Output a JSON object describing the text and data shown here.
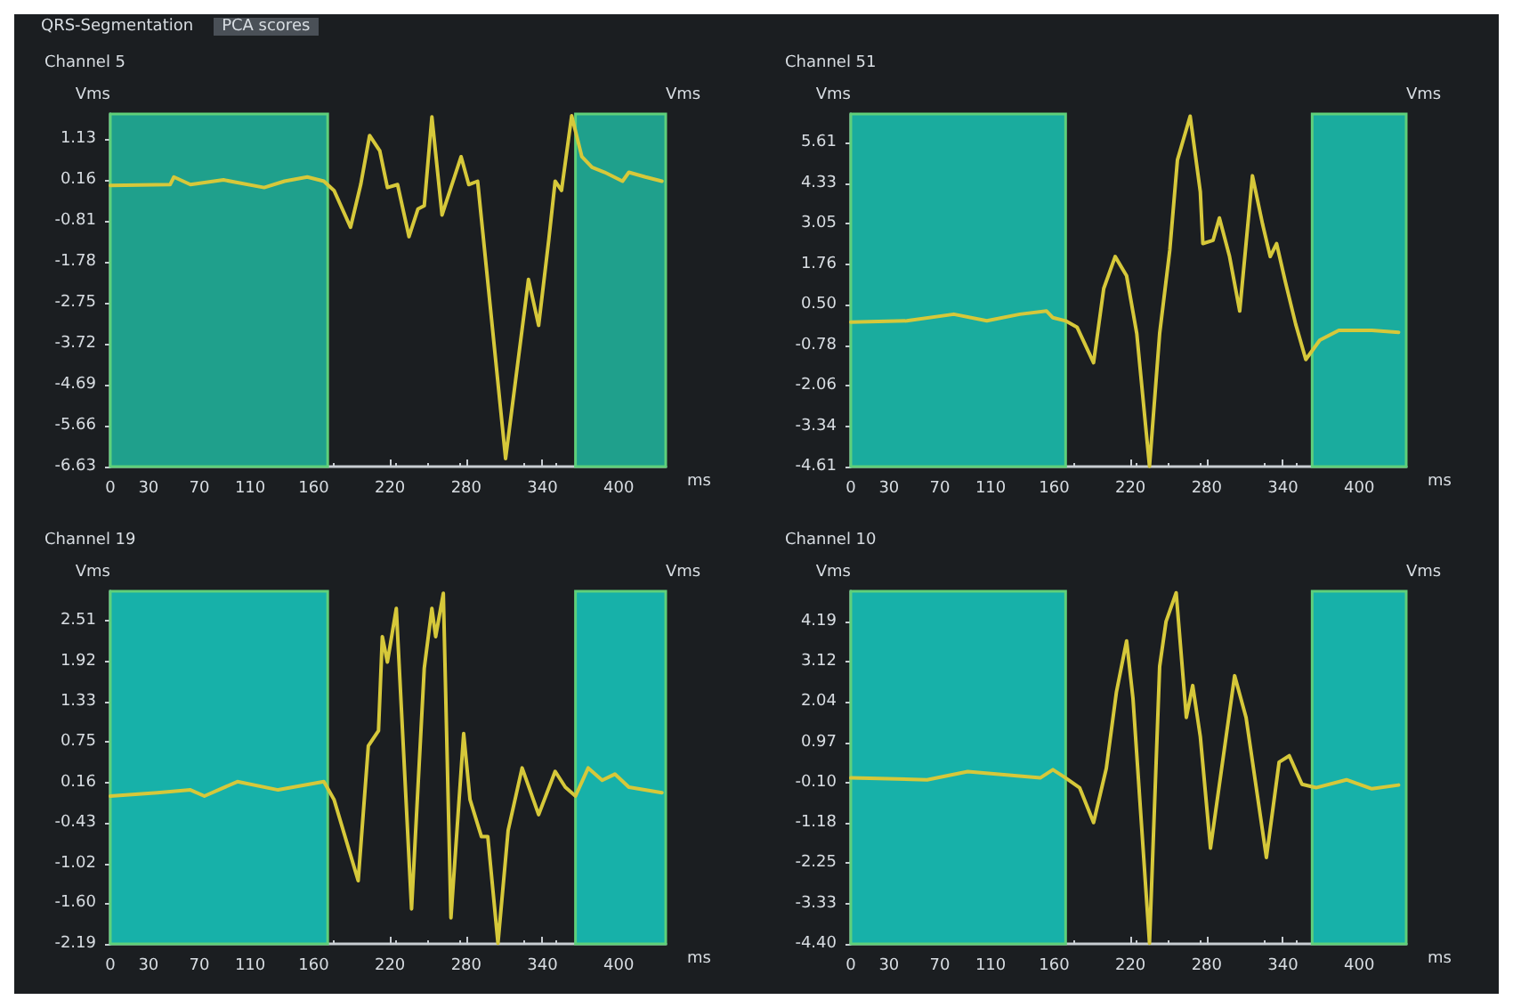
{
  "chart_data": [
    {
      "type": "line",
      "title": "Channel 5",
      "ylabel": "Vms",
      "y2label": "Vms",
      "xlabel": "ms",
      "annotations": [
        "QRS-Segmentation",
        "PCA scores"
      ],
      "xlim": [
        0,
        437
      ],
      "xticks": [
        0,
        30,
        70,
        110,
        160,
        220,
        280,
        340,
        400
      ],
      "ylim": [
        -6.63,
        1.71
      ],
      "yticks": [
        1.13,
        0.16,
        -0.81,
        -1.78,
        -2.75,
        -3.72,
        -4.69,
        -5.66,
        -6.63
      ],
      "grid": false,
      "marker": "none",
      "line_style": "solid",
      "bands": [
        {
          "axis": "x",
          "from": 0,
          "to": 171,
          "color": "#1fa08c"
        },
        {
          "axis": "x",
          "from": 366,
          "to": 437,
          "color": "#1fa08c"
        }
      ],
      "series": [
        {
          "color": "#d6c83a",
          "x": [
            0,
            47,
            50,
            63,
            89,
            121,
            137,
            155,
            168,
            176,
            189,
            197,
            204,
            212,
            218,
            226,
            235,
            242,
            247,
            253,
            261,
            268,
            276,
            282,
            289,
            311,
            329,
            337,
            345,
            350,
            355,
            363,
            371,
            379,
            389,
            403,
            408,
            421,
            434
          ],
          "values": [
            0.02,
            0.04,
            0.22,
            0.04,
            0.15,
            -0.03,
            0.12,
            0.22,
            0.12,
            -0.1,
            -0.97,
            0.04,
            1.2,
            0.84,
            -0.03,
            0.04,
            -1.19,
            -0.54,
            -0.46,
            1.64,
            -0.68,
            -0.03,
            0.7,
            0.04,
            0.12,
            -6.44,
            -2.2,
            -3.29,
            -1.26,
            0.12,
            -0.1,
            1.67,
            0.7,
            0.45,
            0.33,
            0.12,
            0.33,
            0.22,
            0.12
          ]
        }
      ]
    },
    {
      "type": "line",
      "title": "Channel 51",
      "ylabel": "Vms",
      "y2label": "Vms",
      "xlabel": "ms",
      "xlim": [
        0,
        437
      ],
      "xticks": [
        0,
        30,
        70,
        110,
        160,
        220,
        280,
        340,
        400
      ],
      "ylim": [
        -4.61,
        6.52
      ],
      "yticks": [
        5.61,
        4.33,
        3.05,
        1.76,
        {
          "value": 0.5,
          "label": "0.50"
        },
        -0.78,
        -2.06,
        -3.34,
        -4.61
      ],
      "grid": false,
      "marker": "none",
      "line_style": "solid",
      "bands": [
        {
          "axis": "x",
          "from": 0,
          "to": 169,
          "color": "#1aac9e"
        },
        {
          "axis": "x",
          "from": 363,
          "to": 437,
          "color": "#1aac9e"
        }
      ],
      "series": [
        {
          "color": "#d6c83a",
          "x": [
            0,
            44,
            81,
            107,
            133,
            154,
            159,
            169,
            178,
            191,
            199,
            208,
            217,
            225,
            235,
            243,
            251,
            257,
            267,
            275,
            277,
            285,
            290,
            298,
            306,
            316,
            324,
            330,
            335,
            342,
            350,
            358,
            369,
            384,
            410,
            431
          ],
          "values": [
            -0.05,
            -0.01,
            0.2,
            -0.01,
            0.2,
            0.3,
            0.09,
            -0.01,
            -0.21,
            -1.33,
            1.01,
            2.02,
            1.41,
            -0.41,
            -4.6,
            -0.41,
            2.23,
            5.07,
            6.45,
            4.06,
            2.43,
            2.53,
            3.24,
            2.02,
            0.3,
            4.57,
            3.04,
            2.02,
            2.43,
            1.21,
            -0.11,
            -1.23,
            -0.62,
            -0.31,
            -0.31,
            -0.37
          ]
        }
      ]
    },
    {
      "type": "line",
      "title": "Channel 19",
      "ylabel": "Vms",
      "y2label": "Vms",
      "xlabel": "ms",
      "xlim": [
        0,
        437
      ],
      "xticks": [
        0,
        30,
        70,
        110,
        160,
        220,
        280,
        340,
        400
      ],
      "ylim": [
        -2.19,
        2.94
      ],
      "yticks": [
        2.51,
        1.92,
        1.33,
        0.75,
        0.16,
        -0.43,
        -1.02,
        {
          "value": -1.6,
          "label": "-1.60"
        },
        -2.19
      ],
      "grid": false,
      "marker": "none",
      "line_style": "solid",
      "bands": [
        {
          "axis": "x",
          "from": 0,
          "to": 171,
          "color": "#17b1a9"
        },
        {
          "axis": "x",
          "from": 366,
          "to": 437,
          "color": "#17b1a9"
        }
      ],
      "series": [
        {
          "color": "#d6c83a",
          "x": [
            0,
            37,
            63,
            74,
            100,
            132,
            168,
            176,
            195,
            203,
            211,
            214,
            218,
            225,
            237,
            247,
            253,
            256,
            262,
            268,
            278,
            283,
            292,
            297,
            305,
            313,
            324,
            337,
            350,
            358,
            366,
            376,
            387,
            397,
            408,
            434
          ],
          "values": [
            -0.04,
            0.01,
            0.05,
            -0.04,
            0.17,
            0.05,
            0.17,
            -0.09,
            -1.27,
            0.69,
            0.91,
            2.28,
            1.91,
            2.69,
            -1.68,
            1.82,
            2.69,
            2.28,
            2.91,
            -1.81,
            0.87,
            -0.09,
            -0.63,
            -0.63,
            -2.18,
            -0.54,
            0.37,
            -0.31,
            0.32,
            0.09,
            -0.04,
            0.37,
            0.19,
            0.28,
            0.09,
            0.01
          ]
        }
      ]
    },
    {
      "type": "line",
      "title": "Channel 10",
      "ylabel": "Vms",
      "y2label": "Vms",
      "xlabel": "ms",
      "xlim": [
        0,
        437
      ],
      "xticks": [
        0,
        30,
        70,
        110,
        160,
        220,
        280,
        340,
        400
      ],
      "ylim": [
        -4.4,
        4.99
      ],
      "yticks": [
        4.19,
        3.12,
        2.04,
        0.97,
        {
          "value": -0.1,
          "label": "-0.10"
        },
        -1.18,
        -2.25,
        -3.33,
        {
          "value": -4.4,
          "label": "-4.40"
        }
      ],
      "grid": false,
      "marker": "none",
      "line_style": "solid",
      "bands": [
        {
          "axis": "x",
          "from": 0,
          "to": 169,
          "color": "#17b1a9"
        },
        {
          "axis": "x",
          "from": 363,
          "to": 437,
          "color": "#17b1a9"
        }
      ],
      "series": [
        {
          "color": "#d6c83a",
          "x": [
            0,
            60,
            92,
            149,
            159,
            169,
            180,
            191,
            201,
            209,
            217,
            222,
            235,
            243,
            248,
            256,
            264,
            269,
            275,
            283,
            296,
            302,
            311,
            327,
            337,
            345,
            355,
            366,
            390,
            410,
            431
          ],
          "values": [
            0.02,
            -0.03,
            0.19,
            0.02,
            0.24,
            0.02,
            -0.24,
            -1.17,
            0.27,
            2.31,
            3.67,
            2.14,
            -4.38,
            2.99,
            4.18,
            4.95,
            1.63,
            2.48,
            1.12,
            -1.85,
            1.29,
            2.74,
            1.63,
            -2.1,
            0.44,
            0.61,
            -0.15,
            -0.24,
            -0.03,
            -0.27,
            -0.17
          ]
        }
      ]
    }
  ]
}
